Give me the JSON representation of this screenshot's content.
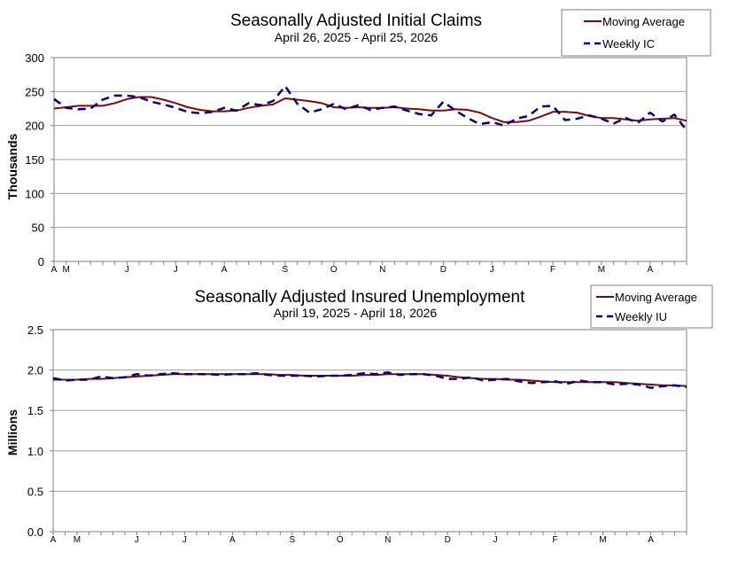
{
  "colors": {
    "moving_average": "#7B0A0A",
    "weekly": "#00007F",
    "grid": "#A0A0A0",
    "axis": "#808080"
  },
  "chart_data": [
    {
      "type": "line",
      "title": "Seasonally Adjusted Initial Claims",
      "subtitle": "April 26, 2025 - April 25, 2026",
      "xlabel": "",
      "ylabel": "Thousands",
      "ylim": [
        0,
        300
      ],
      "yticks": [
        0,
        50,
        100,
        150,
        200,
        250,
        300
      ],
      "month_ticks": [
        {
          "label": "A",
          "week": 0
        },
        {
          "label": "M",
          "week": 1
        },
        {
          "label": "J",
          "week": 6
        },
        {
          "label": "J",
          "week": 10
        },
        {
          "label": "A",
          "week": 14
        },
        {
          "label": "S",
          "week": 19
        },
        {
          "label": "O",
          "week": 23
        },
        {
          "label": "N",
          "week": 27
        },
        {
          "label": "D",
          "week": 32
        },
        {
          "label": "J",
          "week": 36
        },
        {
          "label": "F",
          "week": 41
        },
        {
          "label": "M",
          "week": 45
        },
        {
          "label": "A",
          "week": 49
        }
      ],
      "grid": true,
      "legend_position": "top-right",
      "series": [
        {
          "name": "Moving Average",
          "style": "solid",
          "values": [
            225,
            227,
            229,
            229,
            229,
            233,
            239,
            242,
            242,
            238,
            233,
            227,
            223,
            221,
            221,
            222,
            226,
            229,
            231,
            240,
            238,
            236,
            233,
            227,
            226,
            227,
            226,
            226,
            227,
            225,
            224,
            222,
            222,
            224,
            223,
            219,
            211,
            205,
            205,
            207,
            213,
            220,
            220,
            219,
            214,
            211,
            211,
            209,
            207,
            209,
            210,
            211,
            207
          ]
        },
        {
          "name": "Weekly IC",
          "style": "dashed",
          "values": [
            239,
            226,
            224,
            225,
            238,
            244,
            244,
            242,
            235,
            231,
            226,
            220,
            218,
            220,
            226,
            222,
            233,
            230,
            236,
            258,
            232,
            219,
            224,
            232,
            224,
            230,
            223,
            226,
            228,
            222,
            217,
            215,
            235,
            222,
            211,
            202,
            205,
            200,
            210,
            214,
            228,
            229,
            208,
            210,
            215,
            210,
            203,
            211,
            204,
            219,
            206,
            216,
            193
          ]
        }
      ]
    },
    {
      "type": "line",
      "title": "Seasonally Adjusted Insured Unemployment",
      "subtitle": "April 19, 2025 - April 18, 2026",
      "xlabel": "",
      "ylabel": "Millions",
      "ylim": [
        0.0,
        2.5
      ],
      "yticks": [
        0.0,
        0.5,
        1.0,
        1.5,
        2.0,
        2.5
      ],
      "month_ticks": [
        {
          "label": "A",
          "week": 0
        },
        {
          "label": "M",
          "week": 2
        },
        {
          "label": "J",
          "week": 7
        },
        {
          "label": "J",
          "week": 11
        },
        {
          "label": "A",
          "week": 15
        },
        {
          "label": "S",
          "week": 20
        },
        {
          "label": "O",
          "week": 24
        },
        {
          "label": "N",
          "week": 28
        },
        {
          "label": "D",
          "week": 33
        },
        {
          "label": "J",
          "week": 37
        },
        {
          "label": "F",
          "week": 42
        },
        {
          "label": "M",
          "week": 46
        },
        {
          "label": "A",
          "week": 50
        }
      ],
      "grid": true,
      "legend_position": "top-right",
      "series": [
        {
          "name": "Moving Average",
          "style": "solid",
          "values": [
            1.88,
            1.88,
            1.88,
            1.89,
            1.89,
            1.9,
            1.91,
            1.92,
            1.93,
            1.94,
            1.95,
            1.95,
            1.95,
            1.95,
            1.95,
            1.95,
            1.95,
            1.95,
            1.95,
            1.94,
            1.94,
            1.93,
            1.93,
            1.93,
            1.93,
            1.93,
            1.94,
            1.94,
            1.95,
            1.95,
            1.95,
            1.95,
            1.94,
            1.93,
            1.91,
            1.9,
            1.89,
            1.89,
            1.88,
            1.88,
            1.87,
            1.86,
            1.85,
            1.85,
            1.85,
            1.85,
            1.85,
            1.85,
            1.84,
            1.83,
            1.82,
            1.81,
            1.81,
            1.8
          ]
        },
        {
          "name": "Weekly IU",
          "style": "dashed",
          "values": [
            1.9,
            1.87,
            1.88,
            1.88,
            1.92,
            1.9,
            1.91,
            1.95,
            1.93,
            1.95,
            1.96,
            1.95,
            1.95,
            1.95,
            1.94,
            1.95,
            1.95,
            1.96,
            1.94,
            1.93,
            1.93,
            1.93,
            1.92,
            1.93,
            1.93,
            1.94,
            1.96,
            1.95,
            1.97,
            1.94,
            1.95,
            1.95,
            1.93,
            1.89,
            1.89,
            1.91,
            1.87,
            1.88,
            1.89,
            1.86,
            1.84,
            1.85,
            1.86,
            1.83,
            1.87,
            1.85,
            1.85,
            1.82,
            1.83,
            1.82,
            1.78,
            1.8,
            1.81,
            1.79
          ]
        }
      ]
    }
  ]
}
